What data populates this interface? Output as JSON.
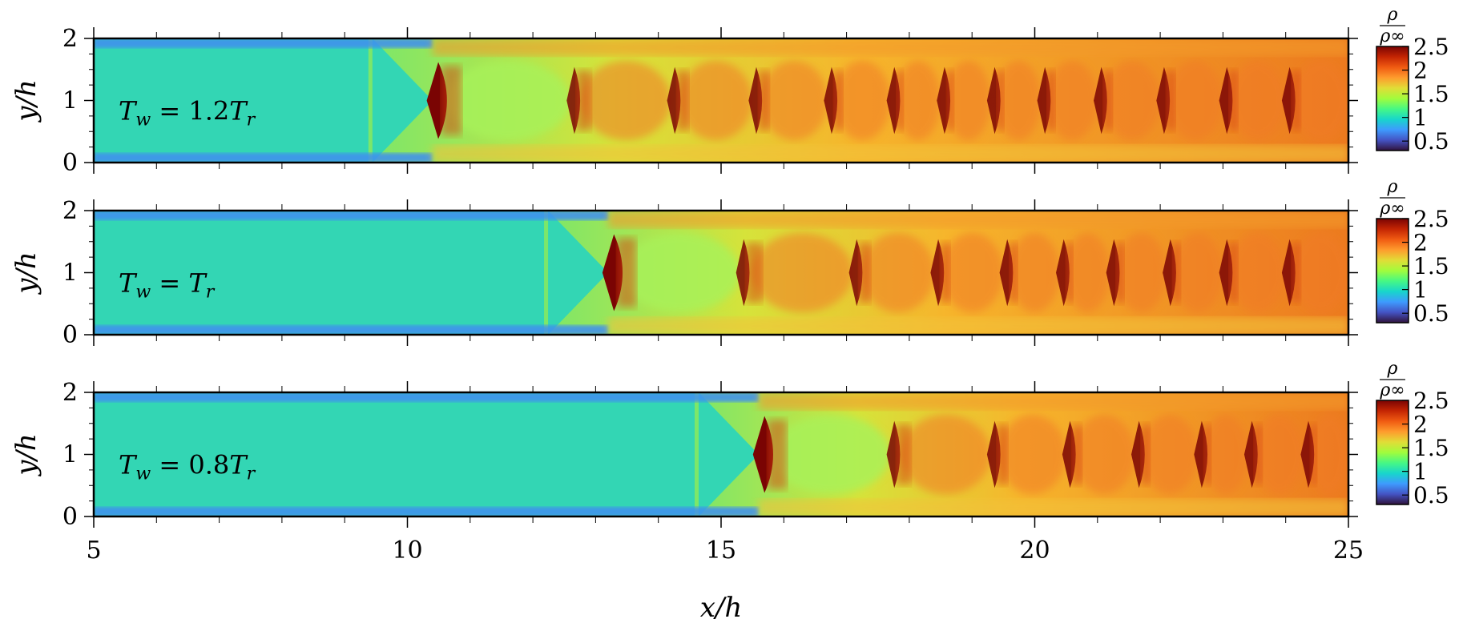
{
  "chart_data": [
    {
      "type": "heatmap",
      "annotation": "T_w = 1.2T_r",
      "annotation_parts": {
        "lhs": "T",
        "lhs_sub": "w",
        "op": " = ",
        "coef": "1.2",
        "rhs": "T",
        "rhs_sub": "r"
      },
      "ylabel": "y/h",
      "xlabel": "",
      "xlim": [
        5,
        25
      ],
      "ylim": [
        0,
        2
      ],
      "yticks": [
        "0",
        "1",
        "2"
      ],
      "xticks": [],
      "shock_positions_x": [
        10.4,
        12.6,
        14.2,
        15.5,
        16.7,
        17.7,
        18.5,
        19.3,
        20.1,
        21.0,
        22.0,
        23.0,
        24.0
      ],
      "colorbar": {
        "label_num": "ρ",
        "label_den": "ρ∞",
        "ticks": [
          "2.5",
          "2",
          "1.5",
          "1",
          "0.5"
        ],
        "range": [
          0.3,
          2.5
        ]
      }
    },
    {
      "type": "heatmap",
      "annotation": "T_w = T_r",
      "annotation_parts": {
        "lhs": "T",
        "lhs_sub": "w",
        "op": " = ",
        "coef": "",
        "rhs": "T",
        "rhs_sub": "r"
      },
      "ylabel": "y/h",
      "xlabel": "",
      "xlim": [
        5,
        25
      ],
      "ylim": [
        0,
        2
      ],
      "yticks": [
        "0",
        "1",
        "2"
      ],
      "xticks": [],
      "shock_positions_x": [
        13.2,
        15.3,
        17.1,
        18.4,
        19.5,
        20.4,
        21.2,
        22.1,
        23.0,
        24.0
      ],
      "colorbar": {
        "label_num": "ρ",
        "label_den": "ρ∞",
        "ticks": [
          "2.5",
          "2",
          "1.5",
          "1",
          "0.5"
        ],
        "range": [
          0.3,
          2.5
        ]
      }
    },
    {
      "type": "heatmap",
      "annotation": "T_w = 0.8T_r",
      "annotation_parts": {
        "lhs": "T",
        "lhs_sub": "w",
        "op": " = ",
        "coef": "0.8",
        "rhs": "T",
        "rhs_sub": "r"
      },
      "ylabel": "y/h",
      "xlabel": "x/h",
      "xlim": [
        5,
        25
      ],
      "ylim": [
        0,
        2
      ],
      "yticks": [
        "0",
        "1",
        "2"
      ],
      "xticks": [
        "5",
        "10",
        "15",
        "20",
        "25"
      ],
      "shock_positions_x": [
        15.6,
        17.7,
        19.3,
        20.5,
        21.6,
        22.6,
        23.4,
        24.3
      ],
      "colorbar": {
        "label_num": "ρ",
        "label_den": "ρ∞",
        "ticks": [
          "2.5",
          "2",
          "1.5",
          "1",
          "0.5"
        ],
        "range": [
          0.3,
          2.5
        ]
      }
    }
  ]
}
